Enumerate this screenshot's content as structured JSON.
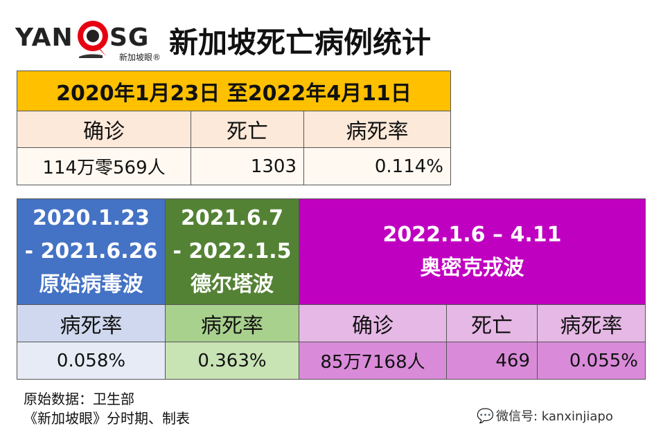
{
  "header": {
    "logo_left": "YAN",
    "logo_right": "SG",
    "logo_sub": "新加坡眼®",
    "title": "新加坡死亡病例统计"
  },
  "overall": {
    "period": "2020年1月23日 至2022年4月11日",
    "headers": [
      "确诊",
      "死亡",
      "病死率"
    ],
    "values": [
      "114万零569人",
      "1303",
      "0.114%"
    ]
  },
  "phases": [
    {
      "lines": [
        "2020.1.23",
        "- 2021.6.26",
        "原始病毒波"
      ],
      "header": "病死率",
      "value": "0.058%",
      "color": "#4472c4"
    },
    {
      "lines": [
        "2021.6.7",
        "- 2022.1.5",
        "德尔塔波"
      ],
      "header": "病死率",
      "value": "0.363%",
      "color": "#548235"
    },
    {
      "lines": [
        "2022.1.6 – 4.11",
        "奥密克戎波"
      ],
      "headers": [
        "确诊",
        "死亡",
        "病死率"
      ],
      "values": [
        "85万7168人",
        "469",
        "0.055%"
      ],
      "color": "#c000c0"
    }
  ],
  "footer": {
    "source_line1": "原始数据：卫生部",
    "source_line2": "《新加坡眼》分时期、制表",
    "wechat_icon": "wechat-icon",
    "wechat": "微信号: kanxinjiapo"
  }
}
